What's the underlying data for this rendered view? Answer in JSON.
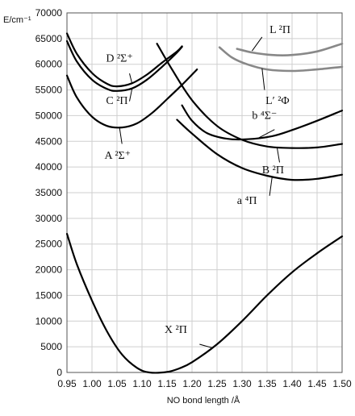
{
  "chart_data": {
    "type": "line",
    "xlabel": "NO bond length /Å",
    "ylabel": "E/cm⁻¹",
    "xlim": [
      0.95,
      1.5
    ],
    "ylim": [
      0,
      70000
    ],
    "x_ticks": [
      "0.95",
      "1.00",
      "1.05",
      "1.10",
      "1.15",
      "1.20",
      "1.25",
      "1.30",
      "1.35",
      "1.40",
      "1.45",
      "1.50"
    ],
    "y_ticks": [
      "0",
      "5000",
      "10000",
      "15000",
      "20000",
      "25000",
      "30000",
      "35000",
      "40000",
      "45000",
      "50000",
      "55000",
      "60000",
      "65000",
      "70000"
    ],
    "grid": true,
    "series": [
      {
        "name": "X ²Π",
        "color": "#000000",
        "points": [
          [
            0.95,
            27000
          ],
          [
            0.97,
            21000
          ],
          [
            1.0,
            14000
          ],
          [
            1.03,
            8000
          ],
          [
            1.06,
            3500
          ],
          [
            1.09,
            900
          ],
          [
            1.115,
            0
          ],
          [
            1.15,
            100
          ],
          [
            1.175,
            800
          ],
          [
            1.2,
            2000
          ],
          [
            1.25,
            5500
          ],
          [
            1.3,
            10000
          ],
          [
            1.35,
            15000
          ],
          [
            1.4,
            19500
          ],
          [
            1.45,
            23200
          ],
          [
            1.5,
            26500
          ]
        ]
      },
      {
        "name": "A ²Σ⁺",
        "color": "#000000",
        "points": [
          [
            0.95,
            57800
          ],
          [
            0.97,
            53500
          ],
          [
            1.0,
            49800
          ],
          [
            1.03,
            48000
          ],
          [
            1.06,
            47700
          ],
          [
            1.09,
            48500
          ],
          [
            1.12,
            50500
          ],
          [
            1.15,
            53200
          ],
          [
            1.18,
            56000
          ],
          [
            1.21,
            59000
          ]
        ]
      },
      {
        "name": "C ²Π",
        "color": "#000000",
        "points": [
          [
            0.95,
            64500
          ],
          [
            0.97,
            60500
          ],
          [
            1.0,
            57000
          ],
          [
            1.03,
            55200
          ],
          [
            1.05,
            54800
          ],
          [
            1.08,
            55300
          ],
          [
            1.11,
            57000
          ],
          [
            1.14,
            59500
          ],
          [
            1.17,
            62300
          ],
          [
            1.18,
            63400
          ]
        ]
      },
      {
        "name": "D ²Σ⁺",
        "color": "#000000",
        "points": [
          [
            0.95,
            66000
          ],
          [
            0.97,
            62000
          ],
          [
            1.0,
            58300
          ],
          [
            1.03,
            56200
          ],
          [
            1.05,
            55700
          ],
          [
            1.08,
            56300
          ],
          [
            1.11,
            58000
          ],
          [
            1.14,
            60300
          ],
          [
            1.17,
            62500
          ],
          [
            1.18,
            63500
          ]
        ]
      },
      {
        "name": "B ²Π",
        "color": "#000000",
        "points": [
          [
            1.13,
            64000
          ],
          [
            1.16,
            59000
          ],
          [
            1.2,
            53000
          ],
          [
            1.25,
            48000
          ],
          [
            1.3,
            45300
          ],
          [
            1.35,
            44000
          ],
          [
            1.4,
            43700
          ],
          [
            1.45,
            43800
          ],
          [
            1.5,
            44500
          ]
        ]
      },
      {
        "name": "a ⁴Π",
        "color": "#000000",
        "points": [
          [
            1.17,
            49200
          ],
          [
            1.2,
            46500
          ],
          [
            1.25,
            42500
          ],
          [
            1.3,
            39800
          ],
          [
            1.35,
            38300
          ],
          [
            1.4,
            37500
          ],
          [
            1.45,
            37700
          ],
          [
            1.5,
            38500
          ]
        ]
      },
      {
        "name": "b ⁴Σ⁻",
        "color": "#000000",
        "points": [
          [
            1.18,
            52000
          ],
          [
            1.2,
            49000
          ],
          [
            1.23,
            46600
          ],
          [
            1.27,
            45500
          ],
          [
            1.31,
            45400
          ],
          [
            1.36,
            46000
          ],
          [
            1.4,
            47200
          ],
          [
            1.45,
            49000
          ],
          [
            1.5,
            51000
          ]
        ]
      },
      {
        "name": "L ²Π",
        "color": "#888888",
        "points": [
          [
            1.29,
            63000
          ],
          [
            1.32,
            62300
          ],
          [
            1.36,
            61800
          ],
          [
            1.4,
            61800
          ],
          [
            1.45,
            62500
          ],
          [
            1.5,
            64000
          ]
        ]
      },
      {
        "name": "L′ ²Φ",
        "color": "#888888",
        "points": [
          [
            1.255,
            63300
          ],
          [
            1.28,
            61300
          ],
          [
            1.31,
            60000
          ],
          [
            1.35,
            59000
          ],
          [
            1.4,
            58700
          ],
          [
            1.45,
            59000
          ],
          [
            1.5,
            59500
          ]
        ]
      }
    ],
    "annotations": [
      {
        "text": "D ²Σ⁺",
        "x": 1.028,
        "y": 60500
      },
      {
        "text": "C ²Π",
        "x": 1.028,
        "y": 52300
      },
      {
        "text": "A ²Σ⁺",
        "x": 1.025,
        "y": 41600
      },
      {
        "text": "L ²Π",
        "x": 1.355,
        "y": 66100
      },
      {
        "text": "L′ ²Φ",
        "x": 1.347,
        "y": 52300
      },
      {
        "text": "b ⁴Σ⁻",
        "x": 1.32,
        "y": 49400
      },
      {
        "text": "B ²Π",
        "x": 1.34,
        "y": 38800
      },
      {
        "text": "a ⁴Π",
        "x": 1.29,
        "y": 32800
      },
      {
        "text": "X ²Π",
        "x": 1.145,
        "y": 7700
      }
    ]
  }
}
